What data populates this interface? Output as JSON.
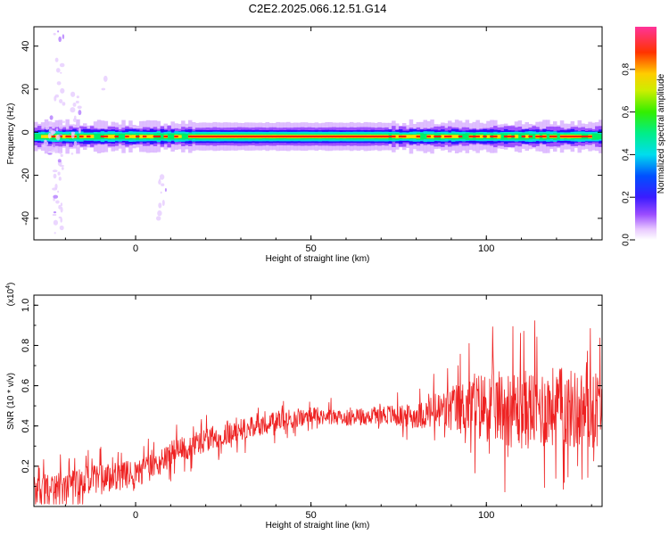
{
  "title": "C2E2.2025.066.12.51.G14",
  "colors": {
    "snr_line": "#ee2222",
    "plot_bg": "#ffffff",
    "frame": "#000000"
  },
  "chart_data": [
    {
      "type": "heatmap",
      "xlabel": "Height of straight line (km)",
      "ylabel": "Frequency (Hz)",
      "xlim": [
        -29,
        133
      ],
      "ylim": [
        -50,
        49
      ],
      "xticks": [
        0,
        50,
        100
      ],
      "yticks": [
        -40,
        -20,
        0,
        20,
        40
      ],
      "colorbar": {
        "label": "Normalized spectral amplitude",
        "range": [
          0.0,
          1.0
        ],
        "ticks": [
          "0.0",
          "0.2",
          "0.4",
          "0.6",
          "0.8"
        ],
        "colormap": "rainbow (white-violet-blue-cyan-green-yellow-red-magenta)"
      },
      "band_center_hz": -2,
      "band_halfwidth_hz": 3,
      "annotations": [
        "white/violet noise columns near x=-22 km and x=-17 km extending to ~49 Hz"
      ]
    },
    {
      "type": "line",
      "xlabel": "Height of straight line (km)",
      "ylabel": "SNR (10 * v/v)",
      "y_multiplier_label": "(x10",
      "y_multiplier_exponent": "4",
      "y_multiplier_close": ")",
      "xlim": [
        -29,
        133
      ],
      "ylim": [
        0,
        1.05
      ],
      "xticks": [
        0,
        50,
        100
      ],
      "yticks": [
        0.2,
        0.4,
        0.6,
        0.8,
        1.0
      ],
      "ytick_labels": [
        "0.2",
        "0.4",
        "0.6",
        "0.8",
        "1.0"
      ],
      "series": [
        {
          "trend_x": [
            -29,
            -20,
            -10,
            0,
            5,
            10,
            15,
            20,
            25,
            30,
            35,
            40,
            45,
            50,
            55,
            60,
            65,
            70,
            75,
            80,
            85,
            90,
            95,
            100,
            105,
            110,
            115,
            120,
            125,
            130,
            133
          ],
          "trend_y": [
            0.08,
            0.11,
            0.14,
            0.16,
            0.2,
            0.26,
            0.3,
            0.33,
            0.36,
            0.38,
            0.4,
            0.42,
            0.44,
            0.45,
            0.45,
            0.44,
            0.45,
            0.46,
            0.45,
            0.45,
            0.47,
            0.48,
            0.5,
            0.5,
            0.49,
            0.48,
            0.49,
            0.5,
            0.48,
            0.48,
            0.5
          ],
          "noise_amp_x": [
            -29,
            0,
            20,
            40,
            60,
            80,
            90,
            100,
            110,
            120,
            133
          ],
          "noise_amp_y": [
            0.08,
            0.07,
            0.06,
            0.05,
            0.04,
            0.06,
            0.12,
            0.18,
            0.2,
            0.2,
            0.2
          ]
        }
      ]
    }
  ]
}
